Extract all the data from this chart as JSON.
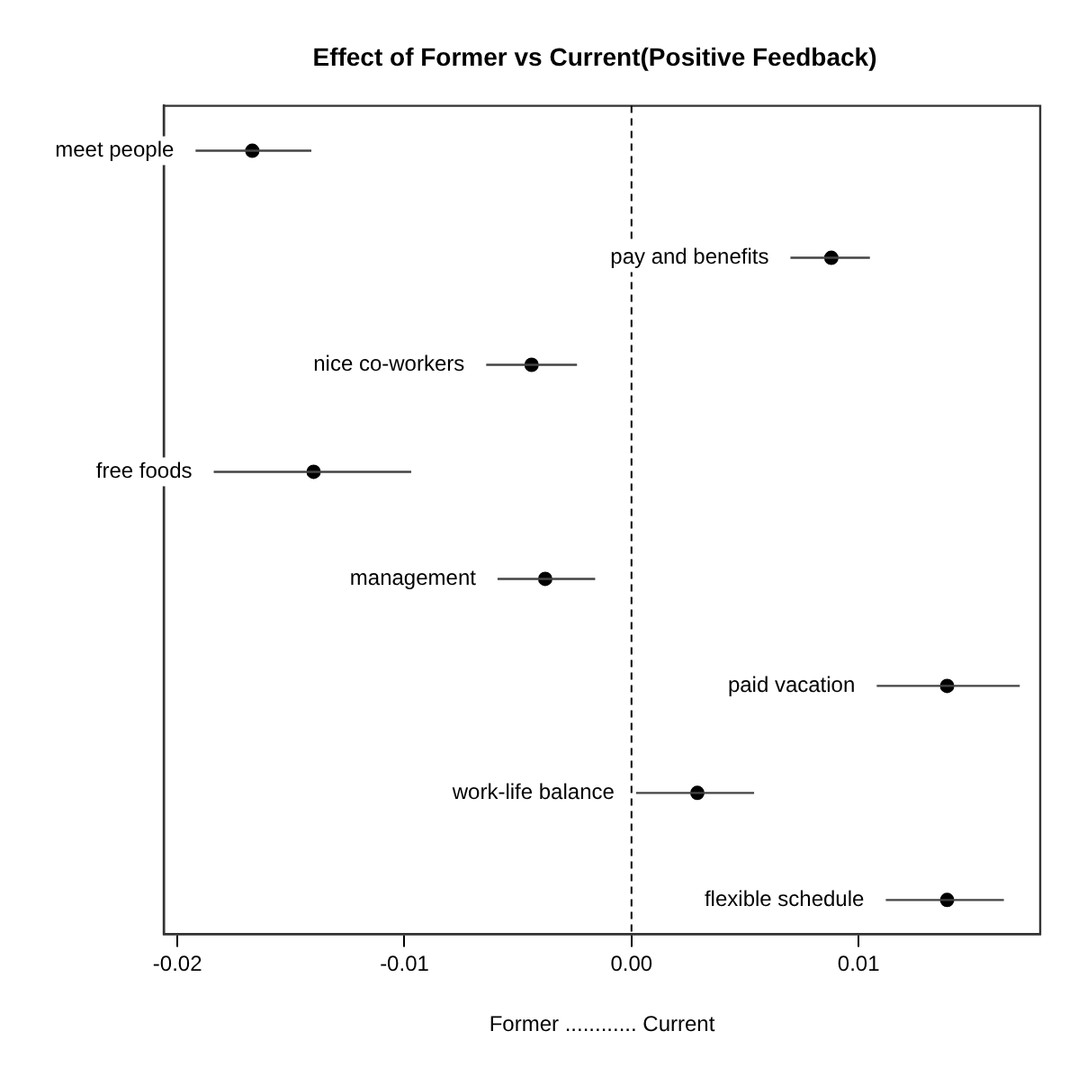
{
  "chart_data": {
    "type": "scatter",
    "title": "Effect of Former vs Current(Positive Feedback)",
    "xlabel": "Former ............ Current",
    "orientation": "horizontal",
    "categories": [
      "meet people",
      "pay and benefits",
      "nice co-workers",
      "free foods",
      "management",
      "paid vacation",
      "work-life balance",
      "flexible schedule"
    ],
    "values": [
      -0.0167,
      0.0088,
      -0.0044,
      -0.014,
      -0.0038,
      0.0139,
      0.0029,
      0.0139
    ],
    "errors": [
      [
        -0.0192,
        -0.0141
      ],
      [
        0.007,
        0.0105
      ],
      [
        -0.0064,
        -0.0024
      ],
      [
        -0.0184,
        -0.0097
      ],
      [
        -0.0059,
        -0.0016
      ],
      [
        0.0108,
        0.0171
      ],
      [
        0.0002,
        0.0054
      ],
      [
        0.0112,
        0.0164
      ]
    ],
    "color": "#000000",
    "marker": "circle",
    "xlim": [
      -0.0206,
      0.018
    ],
    "xticks": [
      -0.02,
      -0.01,
      {
        "value": 0,
        "label": "0.00"
      },
      0.01
    ],
    "ref_lines": [
      {
        "axis": "x",
        "value": 0,
        "line_style": "dashed"
      }
    ],
    "grid": false,
    "legend": false,
    "tick_labels": "x"
  }
}
